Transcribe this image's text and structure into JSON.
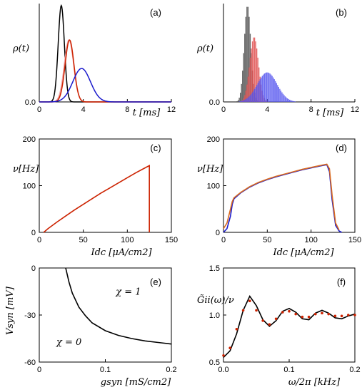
{
  "colors": {
    "black": "#000000",
    "red": "#cc2200",
    "blue": "#1a1acc",
    "pink": "#f0a0a0",
    "orange": "#d86a20",
    "hist_black": "#444444",
    "hist_red": "#e05050",
    "hist_blue": "#5555ee",
    "hist_magenta": "#aa2266"
  },
  "chart_data": [
    {
      "panel": "a",
      "type": "line",
      "tag": "(a)",
      "ylabel": "ρ(t)",
      "xlabel": "t [ms]",
      "xlim": [
        0,
        12
      ],
      "ylim": [
        0,
        1
      ],
      "xticks": [
        0,
        4,
        8,
        12
      ],
      "xtick_labels": [
        "0",
        "4",
        "8",
        "12"
      ],
      "yticks": [
        0
      ],
      "ytick_labels": [
        "0.0"
      ],
      "series": [
        {
          "color": "black",
          "mean": 2.0,
          "sd": 0.28,
          "peak": 0.98
        },
        {
          "color": "pink",
          "mean": 2.7,
          "sd": 0.42,
          "peak": 0.63
        },
        {
          "color": "red",
          "mean": 2.75,
          "sd": 0.4,
          "peak": 0.63
        },
        {
          "color": "blue",
          "mean": 3.85,
          "sd": 0.8,
          "peak": 0.34
        }
      ]
    },
    {
      "panel": "b",
      "type": "histogram",
      "tag": "(b)",
      "ylabel": "ρ(t)",
      "xlabel": "t [ms]",
      "xlim": [
        0,
        12
      ],
      "ylim": [
        0,
        1
      ],
      "xticks": [
        0,
        4,
        8,
        12
      ],
      "xtick_labels": [
        "0",
        "4",
        "8",
        "12"
      ],
      "yticks": [
        0
      ],
      "ytick_labels": [
        "0.0"
      ],
      "series": [
        {
          "color": "hist_black",
          "mean": 2.2,
          "sd": 0.3,
          "peak": 0.98
        },
        {
          "color": "hist_red",
          "mean": 2.8,
          "sd": 0.4,
          "peak": 0.66
        },
        {
          "color": "hist_blue",
          "mean": 4.0,
          "sd": 0.9,
          "peak": 0.3
        }
      ]
    },
    {
      "panel": "c",
      "type": "line",
      "tag": "(c)",
      "ylabel": "ν[Hz]",
      "xlabel": "Idc [μA/cm2]",
      "xlim": [
        0,
        150
      ],
      "ylim": [
        0,
        200
      ],
      "xticks": [
        0,
        50,
        100,
        150
      ],
      "xtick_labels": [
        "0",
        "50",
        "100",
        "150"
      ],
      "yticks": [
        0,
        100,
        200
      ],
      "ytick_labels": [
        "0",
        "100",
        "200"
      ],
      "series": [
        {
          "color": "red",
          "x": [
            5,
            10,
            20,
            30,
            40,
            50,
            60,
            70,
            80,
            90,
            100,
            110,
            120,
            125,
            125
          ],
          "y": [
            0,
            8,
            22,
            35,
            48,
            60,
            72,
            84,
            95,
            106,
            117,
            128,
            138,
            143,
            0
          ]
        }
      ]
    },
    {
      "panel": "d",
      "type": "line",
      "tag": "(d)",
      "ylabel": "ν[Hz]",
      "xlabel": "Idc [μA/cm2]",
      "xlim": [
        0,
        150
      ],
      "ylim": [
        0,
        200
      ],
      "xticks": [
        0,
        50,
        100,
        150
      ],
      "xtick_labels": [
        "0",
        "50",
        "100",
        "150"
      ],
      "yticks": [
        0,
        100,
        200
      ],
      "ytick_labels": [
        "0",
        "100",
        "200"
      ],
      "series": [
        {
          "color": "blue",
          "x": [
            0,
            4,
            8,
            10,
            12,
            20,
            30,
            40,
            50,
            60,
            70,
            80,
            90,
            100,
            110,
            118,
            121,
            124,
            128,
            132,
            135
          ],
          "y": [
            0,
            8,
            35,
            60,
            72,
            85,
            97,
            106,
            113,
            119,
            124,
            129,
            134,
            138,
            142,
            145,
            130,
            70,
            15,
            3,
            0
          ]
        },
        {
          "color": "orange",
          "x": [
            0,
            4,
            8,
            10,
            12,
            20,
            30,
            40,
            50,
            60,
            70,
            80,
            90,
            100,
            110,
            118,
            121,
            124,
            128,
            132
          ],
          "y": [
            8,
            20,
            50,
            66,
            74,
            86,
            98,
            107,
            114,
            120,
            125,
            130,
            135,
            139,
            143,
            146,
            136,
            80,
            20,
            5
          ]
        }
      ]
    },
    {
      "panel": "e",
      "type": "line",
      "tag": "(e)",
      "ylabel": "Vsyn [mV]",
      "xlabel": "gsyn [mS/cm2]",
      "xlim": [
        0,
        0.2
      ],
      "ylim": [
        -60,
        0
      ],
      "xticks": [
        0,
        0.1,
        0.2
      ],
      "xtick_labels": [
        "0",
        "0.1",
        "0.2"
      ],
      "yticks": [
        -60,
        -30,
        0
      ],
      "ytick_labels": [
        "-60",
        "-30",
        "0"
      ],
      "annotations": [
        "χ = 1",
        "χ = 0"
      ],
      "series": [
        {
          "color": "black",
          "x": [
            0.04,
            0.045,
            0.05,
            0.06,
            0.07,
            0.08,
            0.1,
            0.12,
            0.14,
            0.16,
            0.18,
            0.2
          ],
          "y": [
            0,
            -9,
            -16,
            -25,
            -30.5,
            -35,
            -40,
            -43,
            -45,
            -46.5,
            -47.5,
            -48.5
          ]
        }
      ]
    },
    {
      "panel": "f",
      "type": "line",
      "tag": "(f)",
      "ylabel": "G̃ii(ω)/ν",
      "xlabel": "ω/2π [kHz]",
      "xlim": [
        0,
        0.2
      ],
      "ylim": [
        0.5,
        1.5
      ],
      "xticks": [
        0,
        0.1,
        0.2
      ],
      "xtick_labels": [
        "0.0",
        "0.1",
        "0.2"
      ],
      "yticks": [
        0.5,
        1.0,
        1.5
      ],
      "ytick_labels": [
        "0.5",
        "1.0",
        "1.5"
      ],
      "series": [
        {
          "color": "black",
          "x": [
            0,
            0.01,
            0.02,
            0.03,
            0.04,
            0.05,
            0.06,
            0.07,
            0.08,
            0.09,
            0.1,
            0.11,
            0.12,
            0.13,
            0.14,
            0.15,
            0.16,
            0.17,
            0.18,
            0.19,
            0.2
          ],
          "y": [
            0.55,
            0.62,
            0.8,
            1.05,
            1.2,
            1.1,
            0.95,
            0.88,
            0.94,
            1.04,
            1.07,
            1.03,
            0.96,
            0.95,
            1.02,
            1.05,
            1.02,
            0.97,
            0.96,
            0.99,
            1.01
          ]
        },
        {
          "color": "red",
          "dotted": true,
          "x": [
            0,
            0.01,
            0.02,
            0.03,
            0.04,
            0.05,
            0.06,
            0.07,
            0.08,
            0.09,
            0.1,
            0.11,
            0.12,
            0.13,
            0.14,
            0.15,
            0.16,
            0.17,
            0.18,
            0.19,
            0.2
          ],
          "y": [
            0.57,
            0.65,
            0.85,
            1.05,
            1.15,
            1.05,
            0.94,
            0.9,
            0.96,
            1.03,
            1.04,
            1.01,
            0.98,
            0.98,
            1.01,
            1.02,
            1.01,
            0.99,
            0.99,
            1.0,
            1.0
          ]
        }
      ]
    }
  ]
}
